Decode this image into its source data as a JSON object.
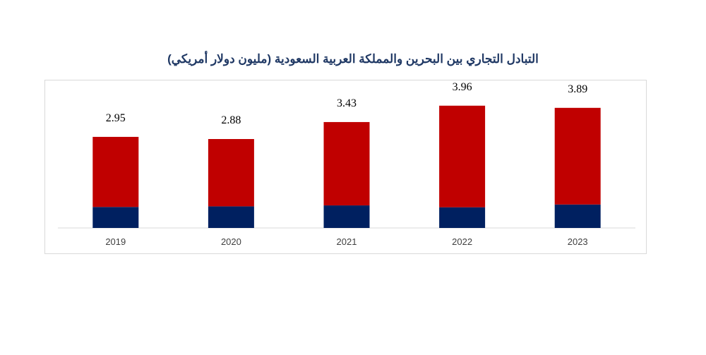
{
  "chart_data": {
    "type": "bar",
    "stacked": true,
    "title": "التبادل التجاري بين البحرين والمملكة العربية السعودية (مليون دولار أمريكي)",
    "categories": [
      "2019",
      "2020",
      "2021",
      "2022",
      "2023"
    ],
    "totals": [
      "2.95",
      "2.88",
      "3.43",
      "3.96",
      "3.89"
    ],
    "series": [
      {
        "values": [
          0.68,
          0.7,
          0.73,
          0.67,
          0.76
        ],
        "color": "#002060"
      },
      {
        "values": [
          2.27,
          2.18,
          2.7,
          3.29,
          3.13
        ],
        "color": "#c00000"
      }
    ],
    "ylim": [
      0,
      4.8
    ],
    "grid": false,
    "legend": "none"
  }
}
